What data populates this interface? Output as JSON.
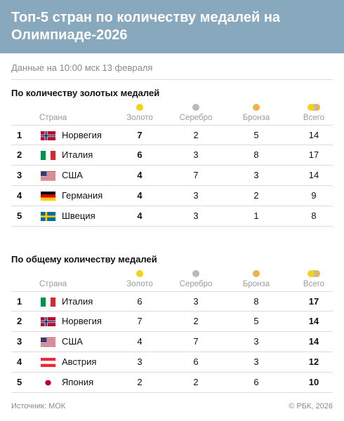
{
  "header": {
    "title": "Топ-5 стран по количеству медалей на Олимпиаде-2026"
  },
  "subtitle": "Данные на 10:00 мск 13 февраля",
  "columns": {
    "country": "Страна",
    "gold": "Золото",
    "silver": "Серебро",
    "bronze": "Бронза",
    "total": "Всего"
  },
  "colors": {
    "header_bg": "#87a8bd",
    "gold": "#f4d21a",
    "silver": "#b9b9b9",
    "bronze": "#f0b04a"
  },
  "tables": [
    {
      "title": "По количеству золотых медалей",
      "rows": [
        {
          "rank": "1",
          "flag": "norway-flag",
          "country": "Норвегия",
          "gold": "7",
          "silver": "2",
          "bronze": "5",
          "total": "14"
        },
        {
          "rank": "2",
          "flag": "italy-flag",
          "country": "Италия",
          "gold": "6",
          "silver": "3",
          "bronze": "8",
          "total": "17"
        },
        {
          "rank": "3",
          "flag": "usa-flag",
          "country": "США",
          "gold": "4",
          "silver": "7",
          "bronze": "3",
          "total": "14"
        },
        {
          "rank": "4",
          "flag": "germany-flag",
          "country": "Германия",
          "gold": "4",
          "silver": "3",
          "bronze": "2",
          "total": "9"
        },
        {
          "rank": "5",
          "flag": "sweden-flag",
          "country": "Швеция",
          "gold": "4",
          "silver": "3",
          "bronze": "1",
          "total": "8"
        }
      ]
    },
    {
      "title": "По общему количеству медалей",
      "rows": [
        {
          "rank": "1",
          "flag": "italy-flag",
          "country": "Италия",
          "gold": "6",
          "silver": "3",
          "bronze": "8",
          "total": "17"
        },
        {
          "rank": "2",
          "flag": "norway-flag",
          "country": "Норвегия",
          "gold": "7",
          "silver": "2",
          "bronze": "5",
          "total": "14"
        },
        {
          "rank": "3",
          "flag": "usa-flag",
          "country": "США",
          "gold": "4",
          "silver": "7",
          "bronze": "3",
          "total": "14"
        },
        {
          "rank": "4",
          "flag": "austria-flag",
          "country": "Австрия",
          "gold": "3",
          "silver": "6",
          "bronze": "3",
          "total": "12"
        },
        {
          "rank": "5",
          "flag": "japan-flag",
          "country": "Япония",
          "gold": "2",
          "silver": "2",
          "bronze": "6",
          "total": "10"
        }
      ]
    }
  ],
  "footer": {
    "source": "Источник: МОК",
    "copyright": "© РБК, 2026"
  }
}
